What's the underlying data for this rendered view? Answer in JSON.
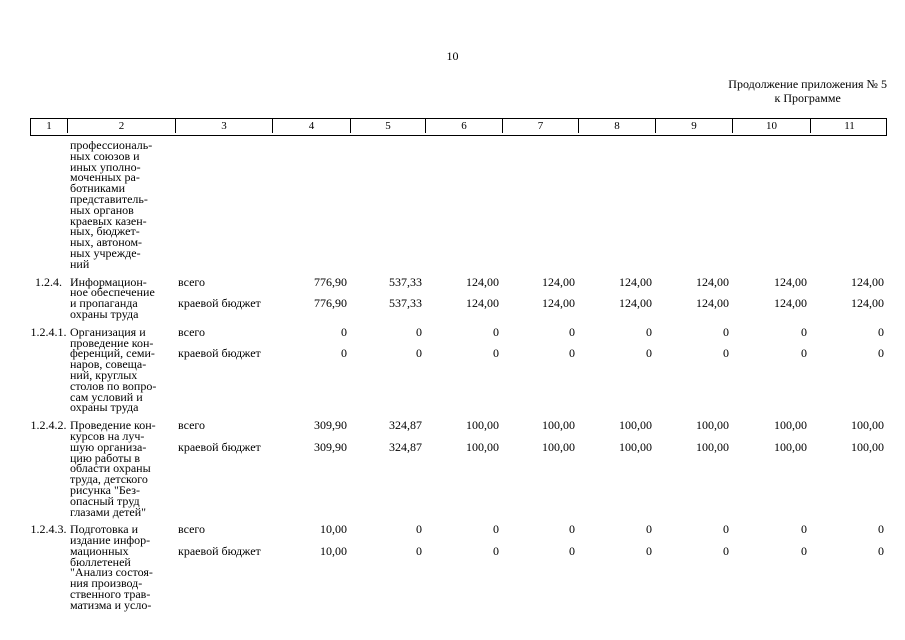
{
  "page": {
    "number": "10",
    "continuation": {
      "line1": "Продолжение приложения № 5",
      "line2": "к Программе"
    }
  },
  "table": {
    "column_numbers": [
      "1",
      "2",
      "3",
      "4",
      "5",
      "6",
      "7",
      "8",
      "9",
      "10",
      "11"
    ],
    "rows": [
      {
        "code": "",
        "name": "профессиональ-\nных союзов и\nиных уполно-\nмоченных ра-\nботниками\nпредставитель-\nных органов\nкраевых казен-\nных, бюджет-\nных, автоном-\nных учрежде-\nний",
        "entries": []
      },
      {
        "code": "1.2.4.",
        "name": "Информацион-\nное обеспечение\nи пропаганда\nохраны труда",
        "entries": [
          {
            "source": "всего",
            "values": [
              "776,90",
              "537,33",
              "124,00",
              "124,00",
              "124,00",
              "124,00",
              "124,00",
              "124,00"
            ]
          },
          {
            "source": "краевой бюджет",
            "values": [
              "776,90",
              "537,33",
              "124,00",
              "124,00",
              "124,00",
              "124,00",
              "124,00",
              "124,00"
            ]
          }
        ]
      },
      {
        "code": "1.2.4.1.",
        "name": "Организация и\nпроведение кон-\nференций, семи-\nнаров, совеща-\nний, круглых\nстолов по вопро-\nсам условий и\nохраны труда",
        "entries": [
          {
            "source": "всего",
            "values": [
              "0",
              "0",
              "0",
              "0",
              "0",
              "0",
              "0",
              "0"
            ]
          },
          {
            "source": "краевой бюджет",
            "values": [
              "0",
              "0",
              "0",
              "0",
              "0",
              "0",
              "0",
              "0"
            ]
          }
        ]
      },
      {
        "code": "1.2.4.2.",
        "name": "Проведение кон-\nкурсов на луч-\nшую организа-\nцию работы в\nобласти охраны\nтруда, детского\nрисунка \"Без-\nопасный труд\nглазами детей\"",
        "entries": [
          {
            "source": "всего",
            "values": [
              "309,90",
              "324,87",
              "100,00",
              "100,00",
              "100,00",
              "100,00",
              "100,00",
              "100,00"
            ]
          },
          {
            "source": "краевой бюджет",
            "values": [
              "309,90",
              "324,87",
              "100,00",
              "100,00",
              "100,00",
              "100,00",
              "100,00",
              "100,00"
            ]
          }
        ]
      },
      {
        "code": "1.2.4.3.",
        "name": "Подготовка и\nиздание инфор-\nмационных\nбюллетеней\n\"Анализ состоя-\nния производ-\nственного трав-\nматизма и усло-",
        "entries": [
          {
            "source": "всего",
            "values": [
              "10,00",
              "0",
              "0",
              "0",
              "0",
              "0",
              "0",
              "0"
            ]
          },
          {
            "source": "краевой бюджет",
            "values": [
              "10,00",
              "0",
              "0",
              "0",
              "0",
              "0",
              "0",
              "0"
            ]
          }
        ]
      }
    ]
  }
}
